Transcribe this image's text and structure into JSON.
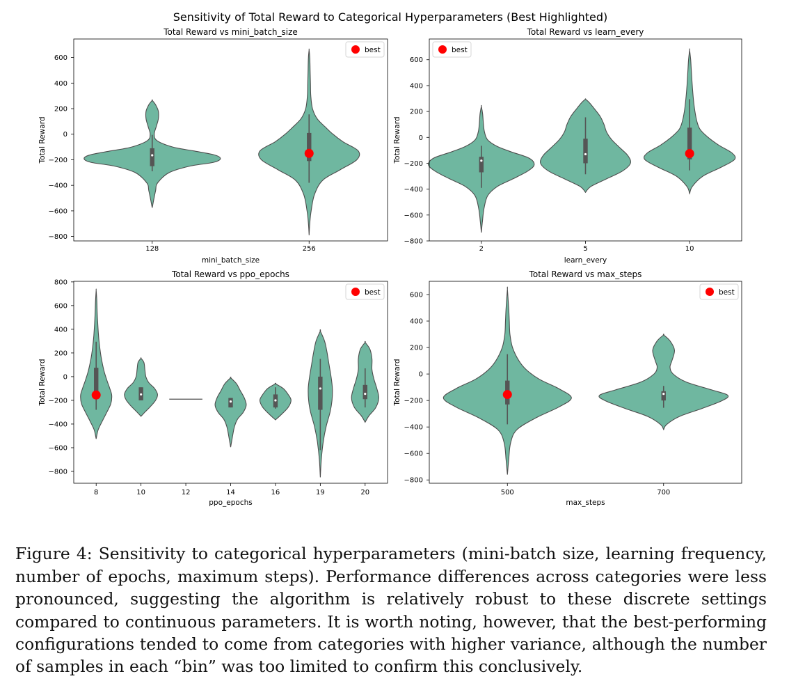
{
  "figure_title": "Sensitivity of Total Reward to Categorical Hyperparameters (Best Highlighted)",
  "caption": "Figure 4: Sensitivity to categorical hyperparameters (mini-batch size, learning frequency, number of epochs, maximum steps). Performance differences across categories were less pronounced, suggesting the algorithm is relatively robust to these discrete settings compared to continuous parameters. It is worth noting, however, that the best-performing configurations tended to come from categories with higher variance, although the number of samples in each “bin” was too limited to confirm this conclusively.",
  "colors": {
    "violin": "#6fb7a0",
    "violin_edge": "#4d4d4d",
    "best": "#ff0000",
    "box": "#555555"
  },
  "chart_data": [
    {
      "type": "violin",
      "title": "Total Reward vs mini_batch_size",
      "xlabel": "mini_batch_size",
      "ylabel": "Total Reward",
      "ylim": [
        -835,
        745
      ],
      "yticks": [
        -800,
        -600,
        -400,
        -200,
        0,
        200,
        400,
        600
      ],
      "legend": {
        "label": "best",
        "position": "top-right"
      },
      "categories": [
        {
          "label": "128",
          "box": {
            "whisker_low": -290,
            "q1": -250,
            "median": -165,
            "q3": -110,
            "whisker_high": -5
          },
          "shape": [
            [
              -575,
              0
            ],
            [
              -520,
              0.02
            ],
            [
              -440,
              0.05
            ],
            [
              -380,
              0.08
            ],
            [
              -300,
              0.25
            ],
            [
              -250,
              0.55
            ],
            [
              -220,
              0.9
            ],
            [
              -190,
              1.0
            ],
            [
              -160,
              0.9
            ],
            [
              -130,
              0.6
            ],
            [
              -100,
              0.3
            ],
            [
              -50,
              0.07
            ],
            [
              0,
              0.03
            ],
            [
              60,
              0.06
            ],
            [
              120,
              0.09
            ],
            [
              180,
              0.09
            ],
            [
              230,
              0.05
            ],
            [
              265,
              0
            ]
          ]
        },
        {
          "label": "256",
          "best": -150,
          "box": {
            "whisker_low": -380,
            "q1": -210,
            "median": -140,
            "q3": 10,
            "whisker_high": 155
          },
          "shape": [
            [
              -790,
              0
            ],
            [
              -700,
              0.01
            ],
            [
              -600,
              0.03
            ],
            [
              -470,
              0.08
            ],
            [
              -360,
              0.2
            ],
            [
              -280,
              0.45
            ],
            [
              -200,
              0.7
            ],
            [
              -130,
              0.72
            ],
            [
              -60,
              0.5
            ],
            [
              0,
              0.35
            ],
            [
              50,
              0.25
            ],
            [
              120,
              0.12
            ],
            [
              200,
              0.05
            ],
            [
              300,
              0.025
            ],
            [
              400,
              0.02
            ],
            [
              500,
              0.015
            ],
            [
              600,
              0.01
            ],
            [
              660,
              0
            ]
          ]
        }
      ]
    },
    {
      "type": "violin",
      "title": "Total Reward vs learn_every",
      "xlabel": "learn_every",
      "ylabel": "Total Reward",
      "ylim": [
        -800,
        760
      ],
      "yticks": [
        -800,
        -600,
        -400,
        -200,
        0,
        200,
        400,
        600
      ],
      "legend": {
        "label": "best",
        "position": "top-left"
      },
      "categories": [
        {
          "label": "2",
          "box": {
            "whisker_low": -390,
            "q1": -270,
            "median": -180,
            "q3": -150,
            "whisker_high": -65
          },
          "shape": [
            [
              -735,
              0
            ],
            [
              -650,
              0.02
            ],
            [
              -550,
              0.05
            ],
            [
              -450,
              0.12
            ],
            [
              -380,
              0.3
            ],
            [
              -320,
              0.6
            ],
            [
              -260,
              0.88
            ],
            [
              -210,
              1.0
            ],
            [
              -160,
              0.9
            ],
            [
              -110,
              0.55
            ],
            [
              -70,
              0.3
            ],
            [
              -20,
              0.12
            ],
            [
              40,
              0.06
            ],
            [
              100,
              0.04
            ],
            [
              180,
              0.025
            ],
            [
              240,
              0
            ]
          ]
        },
        {
          "label": "5",
          "box": {
            "whisker_low": -285,
            "q1": -200,
            "median": -130,
            "q3": -10,
            "whisker_high": 155
          },
          "shape": [
            [
              -425,
              0
            ],
            [
              -380,
              0.1
            ],
            [
              -320,
              0.4
            ],
            [
              -260,
              0.7
            ],
            [
              -200,
              0.85
            ],
            [
              -140,
              0.8
            ],
            [
              -80,
              0.65
            ],
            [
              -20,
              0.5
            ],
            [
              40,
              0.4
            ],
            [
              100,
              0.35
            ],
            [
              160,
              0.28
            ],
            [
              220,
              0.17
            ],
            [
              270,
              0.07
            ],
            [
              295,
              0
            ]
          ]
        },
        {
          "label": "10",
          "best": -125,
          "box": {
            "whisker_low": -255,
            "q1": -170,
            "median": -130,
            "q3": 75,
            "whisker_high": 295
          },
          "shape": [
            [
              -435,
              0
            ],
            [
              -380,
              0.05
            ],
            [
              -300,
              0.25
            ],
            [
              -230,
              0.6
            ],
            [
              -170,
              0.85
            ],
            [
              -120,
              0.8
            ],
            [
              -60,
              0.55
            ],
            [
              0,
              0.35
            ],
            [
              60,
              0.2
            ],
            [
              120,
              0.14
            ],
            [
              200,
              0.1
            ],
            [
              300,
              0.07
            ],
            [
              400,
              0.05
            ],
            [
              500,
              0.035
            ],
            [
              600,
              0.02
            ],
            [
              675,
              0
            ]
          ]
        }
      ]
    },
    {
      "type": "violin",
      "title": "Total Reward vs ppo_epochs",
      "xlabel": "ppo_epochs",
      "ylabel": "Total Reward",
      "ylim": [
        -900,
        805
      ],
      "yticks": [
        -800,
        -600,
        -400,
        -200,
        0,
        200,
        400,
        600,
        800
      ],
      "legend": {
        "label": "best",
        "position": "top-right"
      },
      "categories": [
        {
          "label": "8",
          "best": -155,
          "box": {
            "whisker_low": -280,
            "q1": -180,
            "median": -160,
            "q3": 75,
            "whisker_high": 295
          },
          "shape": [
            [
              -525,
              0
            ],
            [
              -450,
              0.1
            ],
            [
              -380,
              0.3
            ],
            [
              -300,
              0.55
            ],
            [
              -230,
              0.75
            ],
            [
              -160,
              0.8
            ],
            [
              -100,
              0.7
            ],
            [
              -30,
              0.55
            ],
            [
              50,
              0.4
            ],
            [
              150,
              0.27
            ],
            [
              250,
              0.18
            ],
            [
              350,
              0.12
            ],
            [
              450,
              0.08
            ],
            [
              550,
              0.05
            ],
            [
              650,
              0.03
            ],
            [
              730,
              0
            ]
          ]
        },
        {
          "label": "10",
          "box": {
            "whisker_low": -200,
            "q1": -200,
            "median": -150,
            "q3": -90,
            "whisker_high": -90
          },
          "shape": [
            [
              -335,
              0
            ],
            [
              -300,
              0.2
            ],
            [
              -250,
              0.5
            ],
            [
              -200,
              0.75
            ],
            [
              -150,
              0.85
            ],
            [
              -100,
              0.7
            ],
            [
              -50,
              0.4
            ],
            [
              0,
              0.25
            ],
            [
              60,
              0.2
            ],
            [
              120,
              0.15
            ],
            [
              155,
              0
            ]
          ]
        },
        {
          "label": "12",
          "box": null,
          "shape": [
            [
              -190,
              0
            ],
            [
              -190,
              0.85
            ]
          ]
        },
        {
          "label": "14",
          "box": {
            "whisker_low": -260,
            "q1": -260,
            "median": -210,
            "q3": -180,
            "whisker_high": -180
          },
          "shape": [
            [
              -595,
              0
            ],
            [
              -500,
              0.1
            ],
            [
              -420,
              0.2
            ],
            [
              -360,
              0.35
            ],
            [
              -300,
              0.65
            ],
            [
              -240,
              0.8
            ],
            [
              -180,
              0.7
            ],
            [
              -120,
              0.5
            ],
            [
              -60,
              0.3
            ],
            [
              -10,
              0
            ]
          ]
        },
        {
          "label": "16",
          "box": {
            "whisker_low": -270,
            "q1": -260,
            "median": -200,
            "q3": -150,
            "whisker_high": -90
          },
          "shape": [
            [
              -365,
              0
            ],
            [
              -320,
              0.3
            ],
            [
              -260,
              0.65
            ],
            [
              -200,
              0.8
            ],
            [
              -150,
              0.65
            ],
            [
              -100,
              0.4
            ],
            [
              -60,
              0
            ]
          ]
        },
        {
          "label": "19",
          "box": {
            "whisker_low": -620,
            "q1": -280,
            "median": -100,
            "q3": 0,
            "whisker_high": 150
          },
          "shape": [
            [
              -850,
              0
            ],
            [
              -700,
              0.05
            ],
            [
              -550,
              0.15
            ],
            [
              -420,
              0.3
            ],
            [
              -300,
              0.5
            ],
            [
              -200,
              0.6
            ],
            [
              -100,
              0.62
            ],
            [
              0,
              0.55
            ],
            [
              100,
              0.45
            ],
            [
              200,
              0.35
            ],
            [
              300,
              0.22
            ],
            [
              385,
              0
            ]
          ]
        },
        {
          "label": "20",
          "box": {
            "whisker_low": -260,
            "q1": -190,
            "median": -145,
            "q3": -70,
            "whisker_high": 70
          },
          "shape": [
            [
              -385,
              0
            ],
            [
              -330,
              0.2
            ],
            [
              -260,
              0.55
            ],
            [
              -180,
              0.7
            ],
            [
              -100,
              0.6
            ],
            [
              -20,
              0.45
            ],
            [
              60,
              0.35
            ],
            [
              150,
              0.35
            ],
            [
              230,
              0.25
            ],
            [
              290,
              0
            ]
          ]
        }
      ]
    },
    {
      "type": "violin",
      "title": "Total Reward vs max_steps",
      "xlabel": "max_steps",
      "ylabel": "Total Reward",
      "ylim": [
        -825,
        700
      ],
      "yticks": [
        -800,
        -600,
        -400,
        -200,
        0,
        200,
        400,
        600
      ],
      "legend": {
        "label": "best",
        "position": "top-right"
      },
      "categories": [
        {
          "label": "500",
          "best": -155,
          "box": {
            "whisker_low": -380,
            "q1": -230,
            "median": -155,
            "q3": -50,
            "whisker_high": 150
          },
          "shape": [
            [
              -760,
              0
            ],
            [
              -650,
              0.02
            ],
            [
              -520,
              0.05
            ],
            [
              -420,
              0.15
            ],
            [
              -330,
              0.45
            ],
            [
              -250,
              0.8
            ],
            [
              -180,
              1.0
            ],
            [
              -110,
              0.8
            ],
            [
              -40,
              0.5
            ],
            [
              30,
              0.3
            ],
            [
              100,
              0.18
            ],
            [
              200,
              0.08
            ],
            [
              300,
              0.04
            ],
            [
              400,
              0.03
            ],
            [
              500,
              0.02
            ],
            [
              640,
              0
            ]
          ]
        },
        {
          "label": "700",
          "box": {
            "whisker_low": -255,
            "q1": -200,
            "median": -150,
            "q3": -130,
            "whisker_high": -90
          },
          "shape": [
            [
              -420,
              0
            ],
            [
              -380,
              0.05
            ],
            [
              -320,
              0.25
            ],
            [
              -260,
              0.6
            ],
            [
              -200,
              0.92
            ],
            [
              -160,
              1.0
            ],
            [
              -120,
              0.75
            ],
            [
              -60,
              0.35
            ],
            [
              0,
              0.15
            ],
            [
              50,
              0.1
            ],
            [
              100,
              0.13
            ],
            [
              180,
              0.17
            ],
            [
              250,
              0.1
            ],
            [
              295,
              0
            ]
          ]
        }
      ]
    }
  ]
}
